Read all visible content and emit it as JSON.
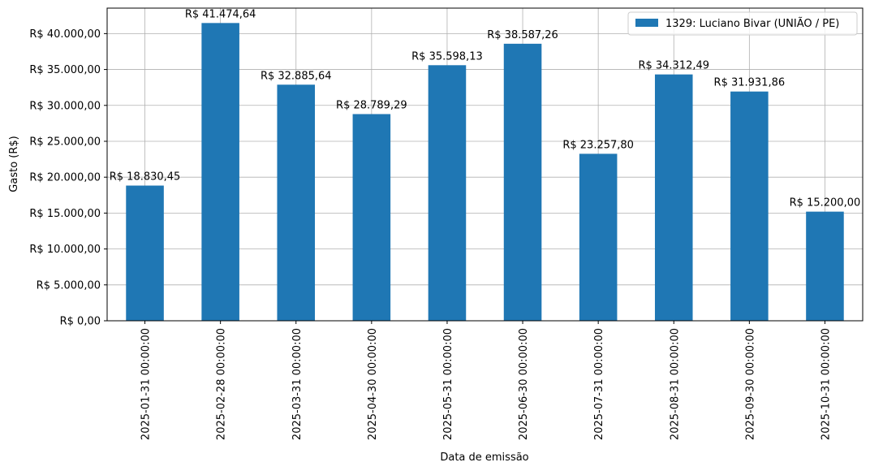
{
  "chart_data": {
    "type": "bar",
    "title": "",
    "xlabel": "Data de emissão",
    "ylabel": "Gasto (R$)",
    "ylim": [
      0,
      43549
    ],
    "y_ticks": [
      {
        "value": 0,
        "label": "R$ 0,00"
      },
      {
        "value": 5000,
        "label": "R$ 5.000,00"
      },
      {
        "value": 10000,
        "label": "R$ 10.000,00"
      },
      {
        "value": 15000,
        "label": "R$ 15.000,00"
      },
      {
        "value": 20000,
        "label": "R$ 20.000,00"
      },
      {
        "value": 25000,
        "label": "R$ 25.000,00"
      },
      {
        "value": 30000,
        "label": "R$ 30.000,00"
      },
      {
        "value": 35000,
        "label": "R$ 35.000,00"
      },
      {
        "value": 40000,
        "label": "R$ 40.000,00"
      }
    ],
    "categories": [
      "2025-01-31 00:00:00",
      "2025-02-28 00:00:00",
      "2025-03-31 00:00:00",
      "2025-04-30 00:00:00",
      "2025-05-31 00:00:00",
      "2025-06-30 00:00:00",
      "2025-07-31 00:00:00",
      "2025-08-31 00:00:00",
      "2025-09-30 00:00:00",
      "2025-10-31 00:00:00"
    ],
    "series": [
      {
        "name": "1329: Luciano Bivar (UNIÃO / PE)",
        "color": "#1f77b4",
        "values": [
          18830.45,
          41474.64,
          32885.64,
          28789.29,
          35598.13,
          38587.26,
          23257.8,
          34312.49,
          31931.86,
          15200.0
        ],
        "data_labels": [
          "R$ 18.830,45",
          "R$ 41.474,64",
          "R$ 32.885,64",
          "R$ 28.789,29",
          "R$ 35.598,13",
          "R$ 38.587,26",
          "R$ 23.257,80",
          "R$ 34.312,49",
          "R$ 31.931,86",
          "R$ 15.200,00"
        ]
      }
    ],
    "grid": true,
    "legend_position": "top-right"
  }
}
